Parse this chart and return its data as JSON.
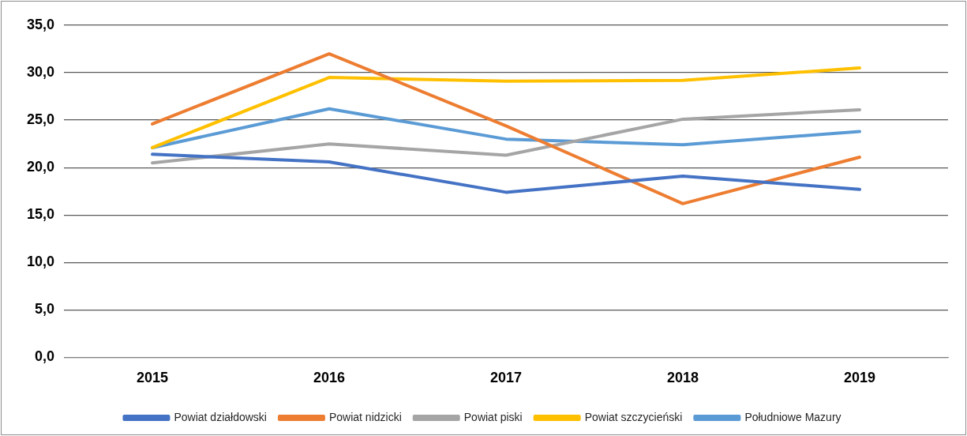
{
  "chart_data": {
    "type": "line",
    "categories": [
      "2015",
      "2016",
      "2017",
      "2018",
      "2019"
    ],
    "series": [
      {
        "name": "Powiat działdowski",
        "color": "#4472c4",
        "values": [
          21.4,
          20.6,
          17.4,
          19.1,
          17.7
        ]
      },
      {
        "name": "Powiat nidzicki",
        "color": "#ed7d31",
        "values": [
          24.6,
          32.0,
          24.4,
          16.2,
          21.1
        ]
      },
      {
        "name": "Powiat piski",
        "color": "#a5a5a5",
        "values": [
          20.5,
          22.5,
          21.3,
          25.1,
          26.1
        ]
      },
      {
        "name": "Powiat szczycieński",
        "color": "#ffc000",
        "values": [
          22.1,
          29.5,
          29.1,
          29.2,
          30.5
        ]
      },
      {
        "name": "Południowe Mazury",
        "color": "#5b9bd5",
        "values": [
          22.1,
          26.2,
          23.0,
          22.4,
          23.8
        ]
      }
    ],
    "ylim": [
      0,
      35
    ],
    "yticks": [
      {
        "value": 0,
        "label": "0,0"
      },
      {
        "value": 5,
        "label": "5,0"
      },
      {
        "value": 10,
        "label": "10,0"
      },
      {
        "value": 15,
        "label": "15,0"
      },
      {
        "value": 20,
        "label": "20,0"
      },
      {
        "value": 25,
        "label": "25,0"
      },
      {
        "value": 30,
        "label": "30,0"
      },
      {
        "value": 35,
        "label": "35,0"
      }
    ],
    "grid": "y",
    "legend": "bottom",
    "marker": "none",
    "line_style": "solid"
  }
}
